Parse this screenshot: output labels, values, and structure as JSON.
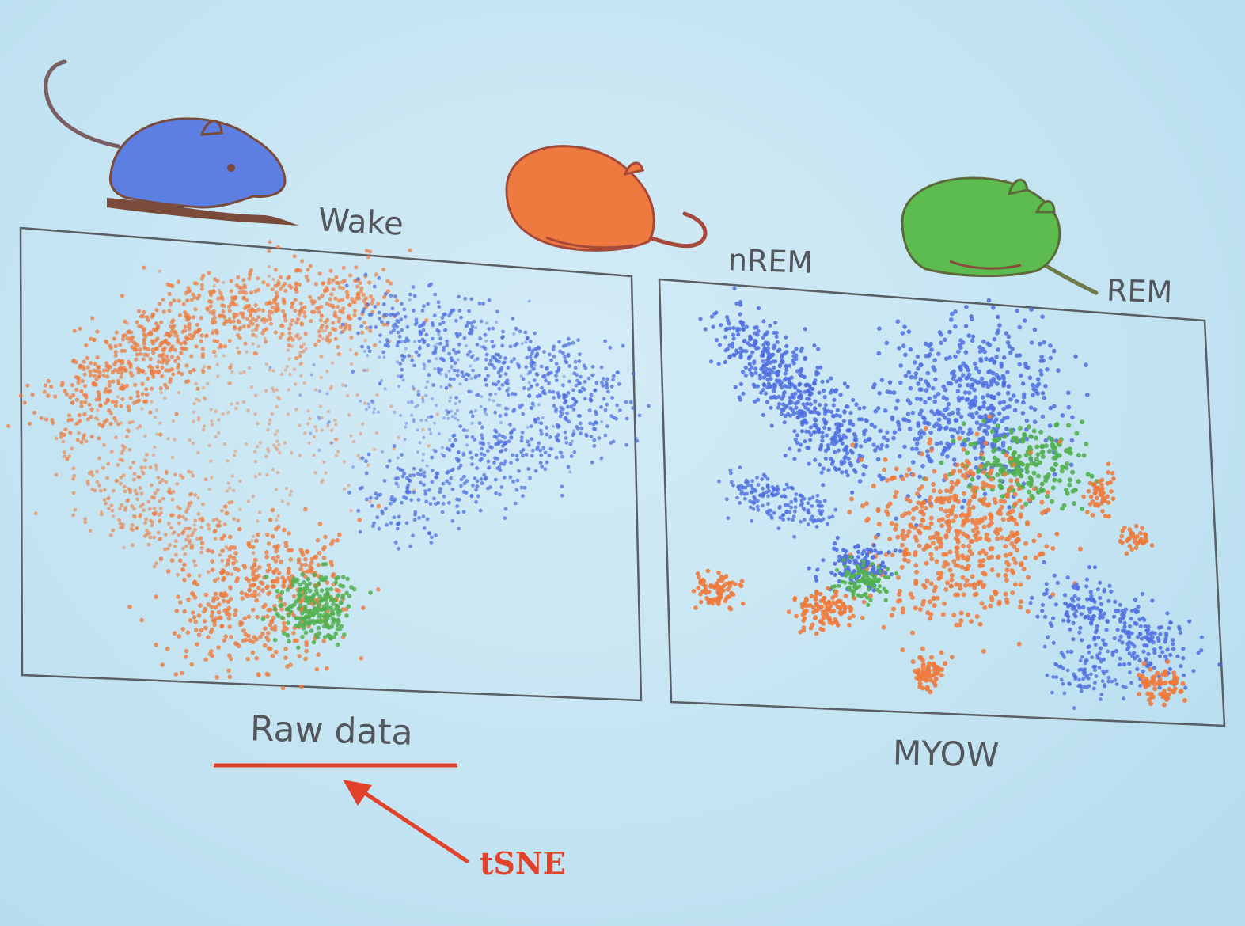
{
  "states": [
    {
      "id": "wake",
      "label": "Wake",
      "color": "#4f6fe0"
    },
    {
      "id": "nrem",
      "label": "nREM",
      "color": "#ef7a3c"
    },
    {
      "id": "rem",
      "label": "REM",
      "color": "#52b04f"
    }
  ],
  "panels": {
    "raw": {
      "caption": "Raw data"
    },
    "myow": {
      "caption": "MYOW"
    }
  },
  "annotation": {
    "text": "tSNE",
    "color": "#e2412a"
  },
  "icons": [
    "mouse-awake-icon",
    "mouse-sleeping-icon",
    "mouse-curled-icon"
  ]
}
